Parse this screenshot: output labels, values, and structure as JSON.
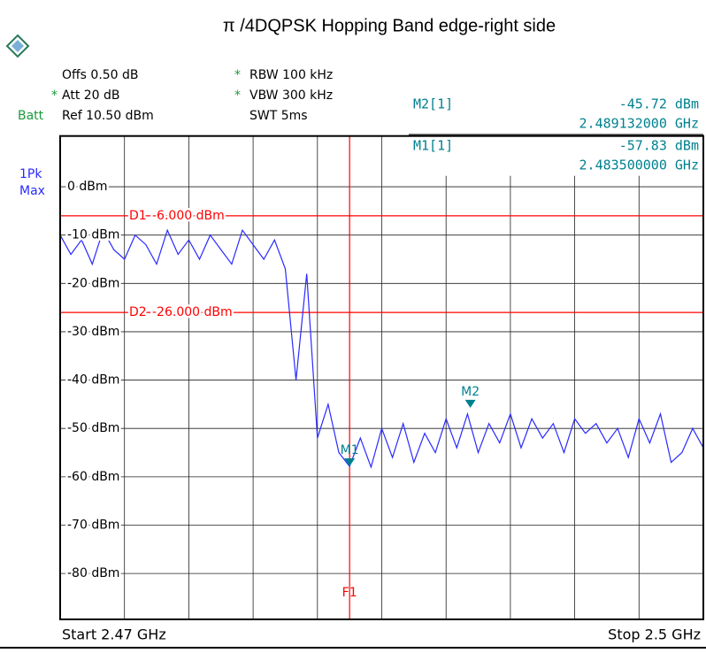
{
  "chart_data": {
    "type": "line",
    "title": "π /4DQPSK Hopping Band edge-right side",
    "header": {
      "offs": "Offs 0.50 dB",
      "att": "Att  20 dB",
      "ref": "Ref  10.50 dBm",
      "batt": "Batt",
      "rbw": "RBW 100 kHz",
      "vbw": "VBW 300 kHz",
      "swt": "SWT 5ms",
      "star": "*",
      "detector": [
        "1Pk",
        "Max"
      ]
    },
    "xlim": [
      2.47,
      2.5
    ],
    "x_start_label": "Start 2.47 GHz",
    "x_stop_label": "Stop 2.5 GHz",
    "ylim": [
      -89.5,
      10.5
    ],
    "yticks": [
      {
        "value": 0,
        "label": "0 dBm"
      },
      {
        "value": -10,
        "label": "-10 dBm"
      },
      {
        "value": -20,
        "label": "-20 dBm"
      },
      {
        "value": -30,
        "label": "-30 dBm"
      },
      {
        "value": -40,
        "label": "-40 dBm"
      },
      {
        "value": -50,
        "label": "-50 dBm"
      },
      {
        "value": -60,
        "label": "-60 dBm"
      },
      {
        "value": -70,
        "label": "-70 dBm"
      },
      {
        "value": -80,
        "label": "-80 dBm"
      }
    ],
    "grid": true,
    "display_lines": [
      {
        "name": "D1",
        "value": -6,
        "label": "-6.000 dBm",
        "color": "#ff0000"
      },
      {
        "name": "D2",
        "value": -26,
        "label": "-26.000 dBm",
        "color": "#ff0000"
      }
    ],
    "frequency_line": {
      "name": "F1",
      "x": 2.4835,
      "color": "#ff0000"
    },
    "markers": [
      {
        "name": "M1",
        "label": "M1[1]",
        "x": 2.4835,
        "x_label": "2.483500000 GHz",
        "value": -57.83,
        "value_label": "-57.83 dBm"
      },
      {
        "name": "M2",
        "label": "M2[1]",
        "x": 2.489132,
        "x_label": "2.489132000 GHz",
        "value": -45.72,
        "value_label": "-45.72 dBm"
      }
    ],
    "marker_color": "#00808f",
    "series": [
      {
        "name": "1Pk Max",
        "color": "#2a2aff",
        "x": [
          2.47,
          2.4705,
          2.471,
          2.4715,
          2.472,
          2.4725,
          2.473,
          2.4735,
          2.474,
          2.4745,
          2.475,
          2.4755,
          2.476,
          2.4765,
          2.477,
          2.4775,
          2.478,
          2.4785,
          2.479,
          2.4795,
          2.48,
          2.4805,
          2.481,
          2.4815,
          2.482,
          2.4825,
          2.483,
          2.4835,
          2.484,
          2.4845,
          2.485,
          2.4855,
          2.486,
          2.4865,
          2.487,
          2.4875,
          2.488,
          2.4885,
          2.489,
          2.4895,
          2.49,
          2.4905,
          2.491,
          2.4915,
          2.492,
          2.4925,
          2.493,
          2.4935,
          2.494,
          2.4945,
          2.495,
          2.4955,
          2.496,
          2.4965,
          2.497,
          2.4975,
          2.498,
          2.4985,
          2.499,
          2.4995,
          2.5
        ],
        "values": [
          -10,
          -14,
          -11,
          -16,
          -9,
          -13,
          -15,
          -10,
          -12,
          -16,
          -9,
          -14,
          -11,
          -15,
          -10,
          -13,
          -16,
          -9,
          -12,
          -15,
          -11,
          -17,
          -40,
          -18,
          -52,
          -45,
          -55,
          -57.83,
          -52,
          -58,
          -50,
          -56,
          -49,
          -57,
          -51,
          -55,
          -48,
          -54,
          -47,
          -55,
          -49,
          -53,
          -47,
          -54,
          -48,
          -52,
          -49,
          -55,
          -48,
          -51,
          -49,
          -53,
          -50,
          -56,
          -48,
          -53,
          -47,
          -57,
          -55,
          -50,
          -54
        ]
      }
    ]
  }
}
